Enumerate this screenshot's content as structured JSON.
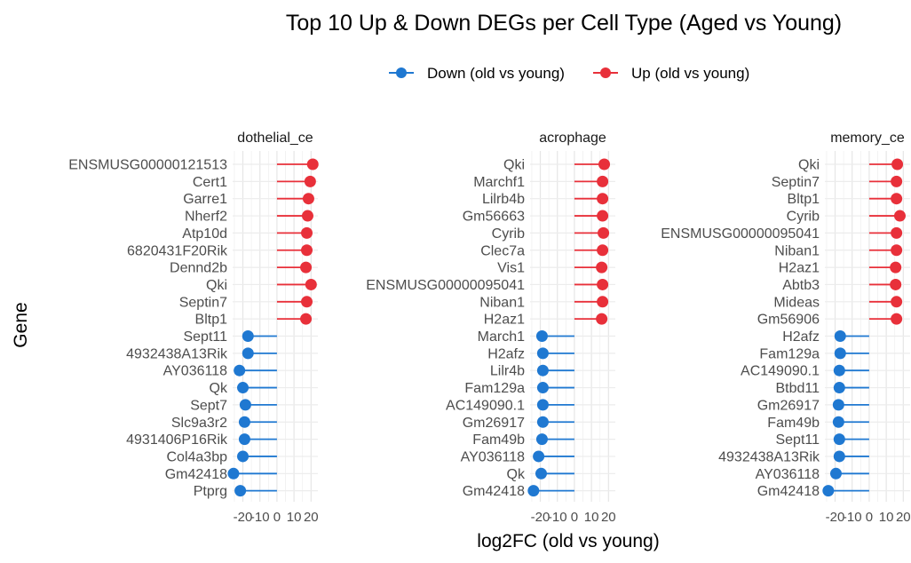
{
  "chart_data": {
    "type": "lollipop",
    "title": "Top 10 Up & Down DEGs per Cell Type (Aged vs Young)",
    "xlabel": "log2FC (old vs young)",
    "ylabel": "Gene",
    "legend_position": "top",
    "legend": [
      {
        "name": "Down (old vs young)",
        "color": "#1f78d1"
      },
      {
        "name": "Up (old vs young)",
        "color": "#e8303a"
      }
    ],
    "x_tick_labels": [
      "-20",
      "-10",
      "0",
      "10",
      "20"
    ],
    "x_tick_values": [
      -20,
      -10,
      0,
      10,
      20
    ],
    "xlim": [
      -26,
      24
    ],
    "grid": true,
    "panels": [
      {
        "facet_label": "dothelial_ce",
        "genes": [
          "ENSMUSG00000121513",
          "Cert1",
          "Garre1",
          "Nherf2",
          "Atp10d",
          "6820431F20Rik",
          "Dennd2b",
          "Qki",
          "Septin7",
          "Bltp1",
          "Sept11",
          "4932438A13Rik",
          "AY036118",
          "Qk",
          "Sept7",
          "Slc9a3r2",
          "4931406P16Rik",
          "Col4a3bp",
          "Gm42418",
          "Ptprg"
        ],
        "values": [
          21.0,
          19.5,
          18.5,
          18.0,
          17.5,
          17.5,
          17.0,
          20.0,
          17.5,
          17.0,
          -17.0,
          -17.0,
          -22.0,
          -20.0,
          -18.5,
          -19.0,
          -19.0,
          -20.0,
          -25.5,
          -21.5
        ],
        "direction": [
          "up",
          "up",
          "up",
          "up",
          "up",
          "up",
          "up",
          "up",
          "up",
          "up",
          "down",
          "down",
          "down",
          "down",
          "down",
          "down",
          "down",
          "down",
          "down",
          "down"
        ]
      },
      {
        "facet_label": "acrophage",
        "genes": [
          "Qki",
          "Marchf1",
          "Lilrb4b",
          "Gm56663",
          "Cyrib",
          "Clec7a",
          "Vis1",
          "ENSMUSG00000095041",
          "Niban1",
          "H2az1",
          "March1",
          "H2afz",
          "Lilr4b",
          "Fam129a",
          "AC149090.1",
          "Gm26917",
          "Fam49b",
          "AY036118",
          "Qk",
          "Gm42418"
        ],
        "values": [
          17.5,
          16.5,
          16.5,
          16.5,
          17.0,
          16.5,
          16.0,
          16.5,
          16.5,
          16.0,
          -19.0,
          -18.5,
          -18.5,
          -18.5,
          -18.5,
          -18.5,
          -19.0,
          -21.0,
          -19.5,
          -24.0
        ],
        "direction": [
          "up",
          "up",
          "up",
          "up",
          "up",
          "up",
          "up",
          "up",
          "up",
          "up",
          "down",
          "down",
          "down",
          "down",
          "down",
          "down",
          "down",
          "down",
          "down",
          "down"
        ]
      },
      {
        "facet_label": "memory_ce",
        "genes": [
          "Qki",
          "Septin7",
          "Bltp1",
          "Cyrib",
          "ENSMUSG00000095041",
          "Niban1",
          "H2az1",
          "Abtb3",
          "Mideas",
          "Gm56906",
          "H2afz",
          "Fam129a",
          "AC149090.1",
          "Btbd11",
          "Gm26917",
          "Fam49b",
          "Sept11",
          "4932438A13Rik",
          "AY036118",
          "Gm42418"
        ],
        "values": [
          16.5,
          16.0,
          16.0,
          18.0,
          16.0,
          16.0,
          15.5,
          15.5,
          16.0,
          16.0,
          -17.0,
          -17.0,
          -17.5,
          -17.5,
          -18.0,
          -18.0,
          -17.5,
          -17.5,
          -19.5,
          -24.0
        ],
        "direction": [
          "up",
          "up",
          "up",
          "up",
          "up",
          "up",
          "up",
          "up",
          "up",
          "up",
          "down",
          "down",
          "down",
          "down",
          "down",
          "down",
          "down",
          "down",
          "down",
          "down"
        ]
      }
    ]
  }
}
